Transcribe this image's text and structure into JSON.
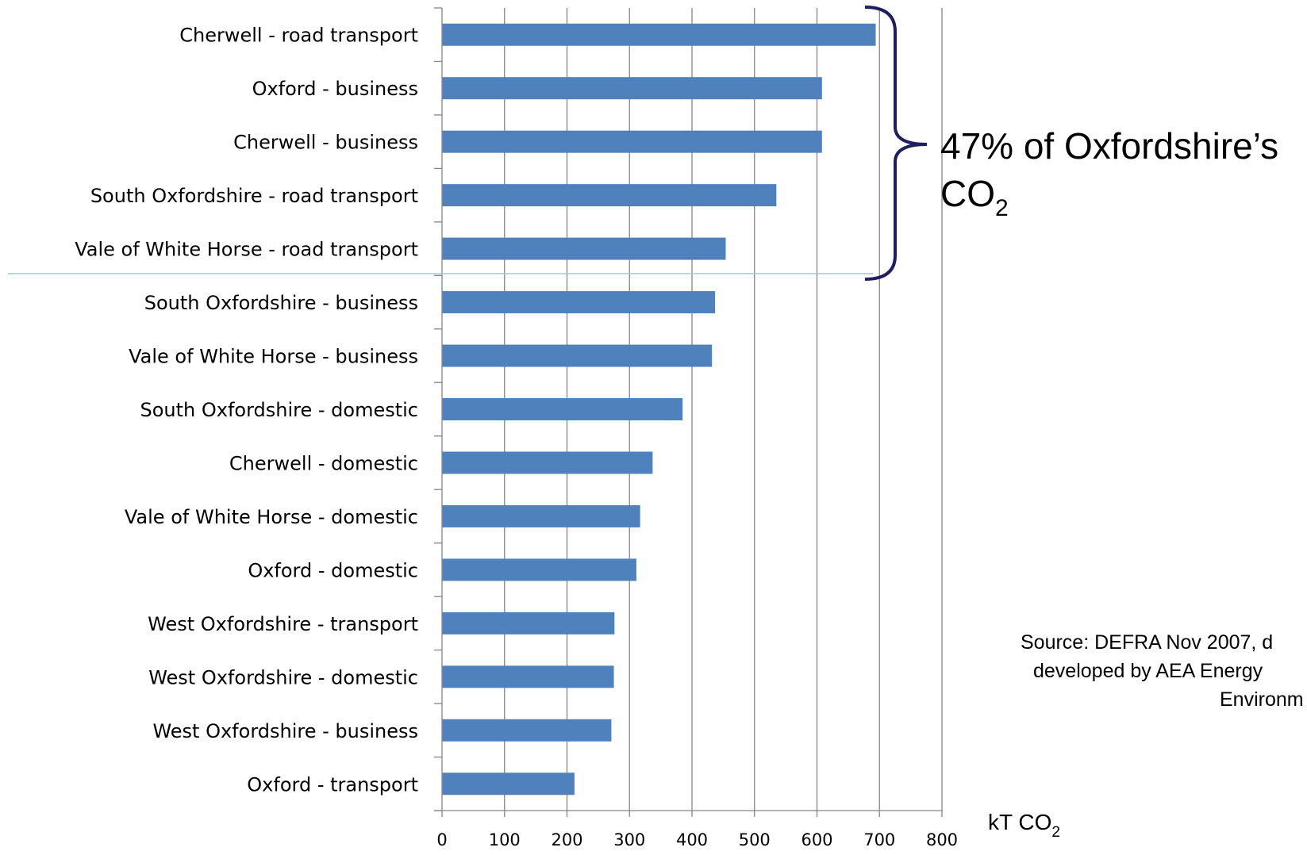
{
  "chart_data": {
    "type": "bar",
    "orientation": "horizontal",
    "categories": [
      "Cherwell - road transport",
      "Oxford - business",
      "Cherwell - business",
      "South Oxfordshire - road transport",
      "Vale of White Horse - road transport",
      "South Oxfordshire - business",
      "Vale of White Horse - business",
      "South Oxfordshire - domestic",
      "Cherwell - domestic",
      "Vale of White Horse - domestic",
      "Oxford - domestic",
      "West Oxfordshire - transport",
      "West Oxfordshire - domestic",
      "West Oxfordshire - business",
      "Oxford - transport"
    ],
    "values": [
      694,
      608,
      608,
      535,
      454,
      437,
      432,
      385,
      337,
      317,
      311,
      276,
      275,
      271,
      212
    ],
    "xlim": [
      0,
      800
    ],
    "xticks": [
      "0",
      "100",
      "200",
      "300",
      "400",
      "500",
      "600",
      "700",
      "800"
    ],
    "grid": true,
    "bar_color": "#4f81bd",
    "grid_color": "#868686",
    "unit_label": {
      "main": "kT CO",
      "sub": "2"
    },
    "annotation": {
      "line1": "47% of Oxfordshire’s",
      "line2_main": "CO",
      "line2_sub": "2",
      "bracket_color": "#1f1f5f",
      "divider_color": "#8fd0d8"
    },
    "source": {
      "line1": "Source: DEFRA Nov 2007, d",
      "line2": "developed by AEA Energy",
      "line3": "Environm"
    }
  }
}
